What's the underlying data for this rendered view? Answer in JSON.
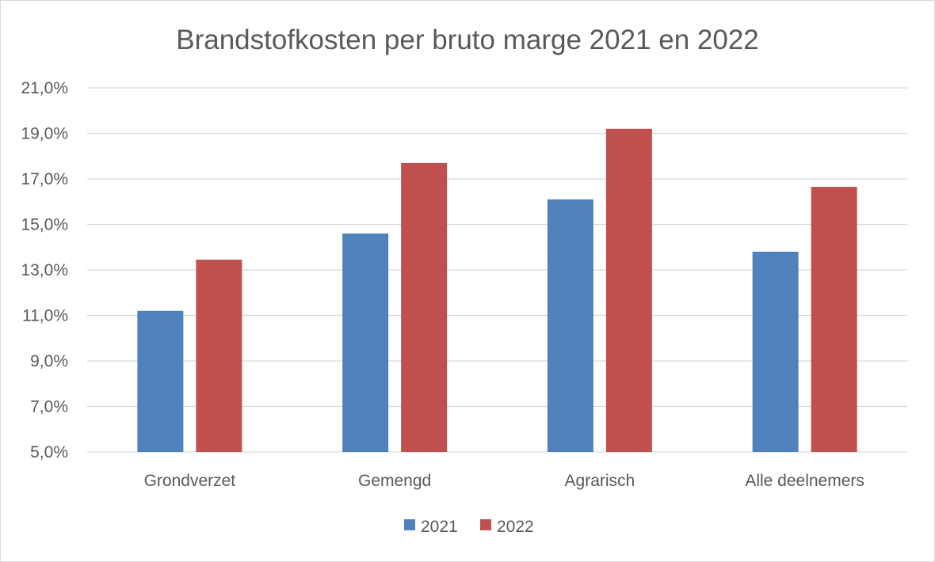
{
  "chart_data": {
    "type": "bar",
    "title": "Brandstofkosten per bruto marge 2021 en 2022",
    "xlabel": "",
    "ylabel": "",
    "categories": [
      "Grondverzet",
      "Gemengd",
      "Agrarisch",
      "Alle deelnemers"
    ],
    "series": [
      {
        "name": "2021",
        "color": "#4f81bd",
        "values": [
          11.2,
          14.6,
          16.1,
          13.8
        ]
      },
      {
        "name": "2022",
        "color": "#c0504d",
        "values": [
          13.45,
          17.7,
          19.2,
          16.65
        ]
      }
    ],
    "ylim": [
      5,
      21
    ],
    "yticks": [
      "5,0%",
      "7,0%",
      "9,0%",
      "11,0%",
      "13,0%",
      "15,0%",
      "17,0%",
      "19,0%",
      "21,0%"
    ],
    "ytick_values": [
      5,
      7,
      9,
      11,
      13,
      15,
      17,
      19,
      21
    ],
    "grid": true,
    "legend_position": "bottom"
  }
}
